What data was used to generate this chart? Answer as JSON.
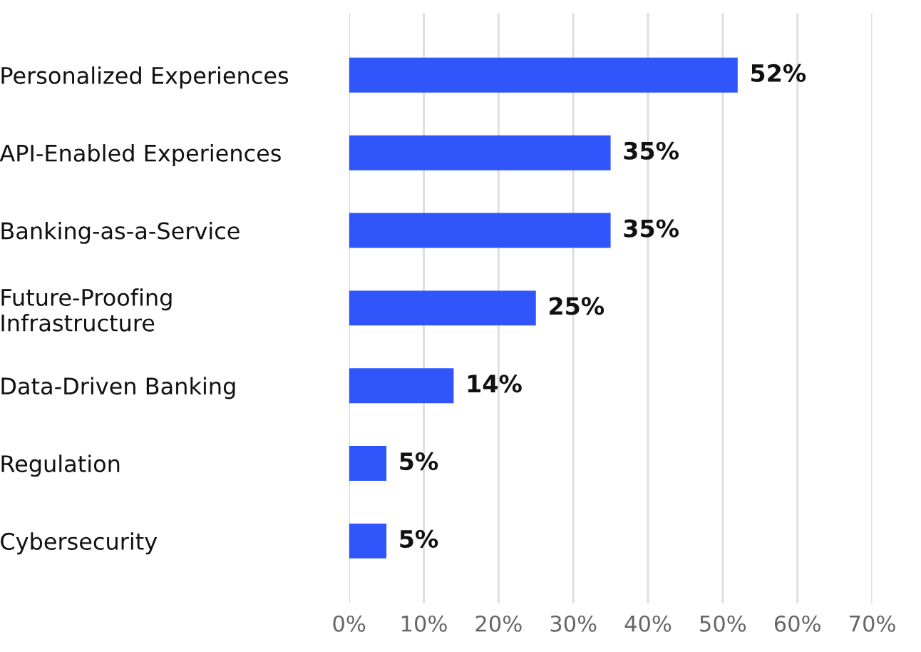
{
  "chart_data": {
    "type": "bar",
    "orientation": "horizontal",
    "categories": [
      "Personalized Experiences",
      "API-Enabled Experiences",
      "Banking-as-a-Service",
      "Future-Proofing\nInfrastructure",
      "Data-Driven Banking",
      "Regulation",
      "Cybersecurity"
    ],
    "values": [
      52,
      35,
      35,
      25,
      14,
      5,
      5
    ],
    "value_labels": [
      "52%",
      "35%",
      "35%",
      "25%",
      "14%",
      "5%",
      "5%"
    ],
    "color": "#2f55fb",
    "xlim": [
      0,
      70
    ],
    "xticks": [
      {
        "value": 0,
        "label": "0%"
      },
      {
        "value": 10,
        "label": "10%"
      },
      {
        "value": 20,
        "label": "20%"
      },
      {
        "value": 30,
        "label": "30%"
      },
      {
        "value": 40,
        "label": "40%"
      },
      {
        "value": 50,
        "label": "50%"
      },
      {
        "value": 60,
        "label": "60%"
      },
      {
        "value": 70,
        "label": "70%"
      }
    ],
    "grid": "x"
  }
}
